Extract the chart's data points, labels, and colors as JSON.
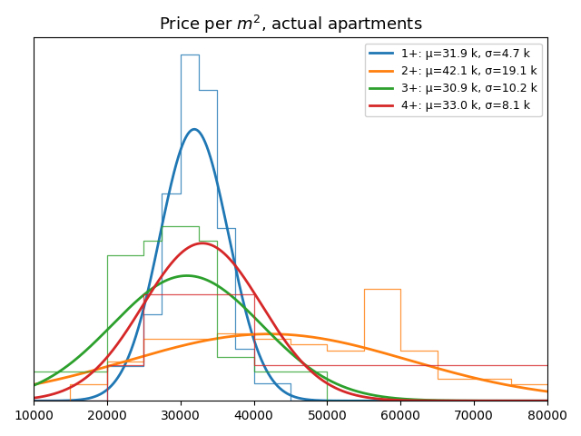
{
  "title": "Price per $m^2$, actual apartments",
  "series": [
    {
      "label": "1+: μ=31.9 k, σ=4.7 k",
      "mu": 31900,
      "sigma": 4700,
      "color": "#1f77b4",
      "bin_edges": [
        10000,
        15000,
        20000,
        25000,
        27500,
        30000,
        32500,
        35000,
        37500,
        40000,
        45000,
        50000,
        55000,
        60000,
        65000,
        70000,
        75000,
        80000
      ],
      "hist_counts": [
        0,
        0,
        2,
        5,
        12,
        20,
        18,
        10,
        3,
        1,
        0,
        0,
        0,
        0,
        0,
        0,
        0
      ]
    },
    {
      "label": "2+: μ=42.1 k, σ=19.1 k",
      "mu": 42100,
      "sigma": 19100,
      "color": "#ff7f0e",
      "bin_edges": [
        10000,
        15000,
        20000,
        25000,
        27500,
        30000,
        32500,
        35000,
        37500,
        40000,
        45000,
        50000,
        55000,
        60000,
        65000,
        70000,
        75000,
        80000
      ],
      "hist_counts": [
        0,
        3,
        7,
        11,
        11,
        11,
        11,
        12,
        12,
        11,
        10,
        9,
        20,
        9,
        4,
        4,
        3
      ]
    },
    {
      "label": "3+: μ=30.9 k, σ=10.2 k",
      "mu": 30900,
      "sigma": 10200,
      "color": "#2ca02c",
      "bin_edges": [
        10000,
        15000,
        20000,
        25000,
        27500,
        30000,
        32500,
        35000,
        37500,
        40000,
        45000,
        50000,
        55000,
        60000,
        65000,
        70000,
        75000,
        80000
      ],
      "hist_counts": [
        2,
        2,
        10,
        11,
        12,
        12,
        11,
        3,
        3,
        2,
        2,
        0,
        0,
        0,
        0,
        0,
        0
      ]
    },
    {
      "label": "4+: μ=33.0 k, σ=8.1 k",
      "mu": 33000,
      "sigma": 8100,
      "color": "#d62728",
      "bin_edges": [
        10000,
        20000,
        25000,
        30000,
        35000,
        40000,
        80000
      ],
      "hist_counts": [
        0,
        3,
        9,
        9,
        9,
        3
      ]
    }
  ],
  "xlim": [
    10000,
    80000
  ],
  "xticks": [
    10000,
    20000,
    30000,
    40000,
    50000,
    60000,
    70000,
    80000
  ],
  "gauss_scale": 1.0
}
